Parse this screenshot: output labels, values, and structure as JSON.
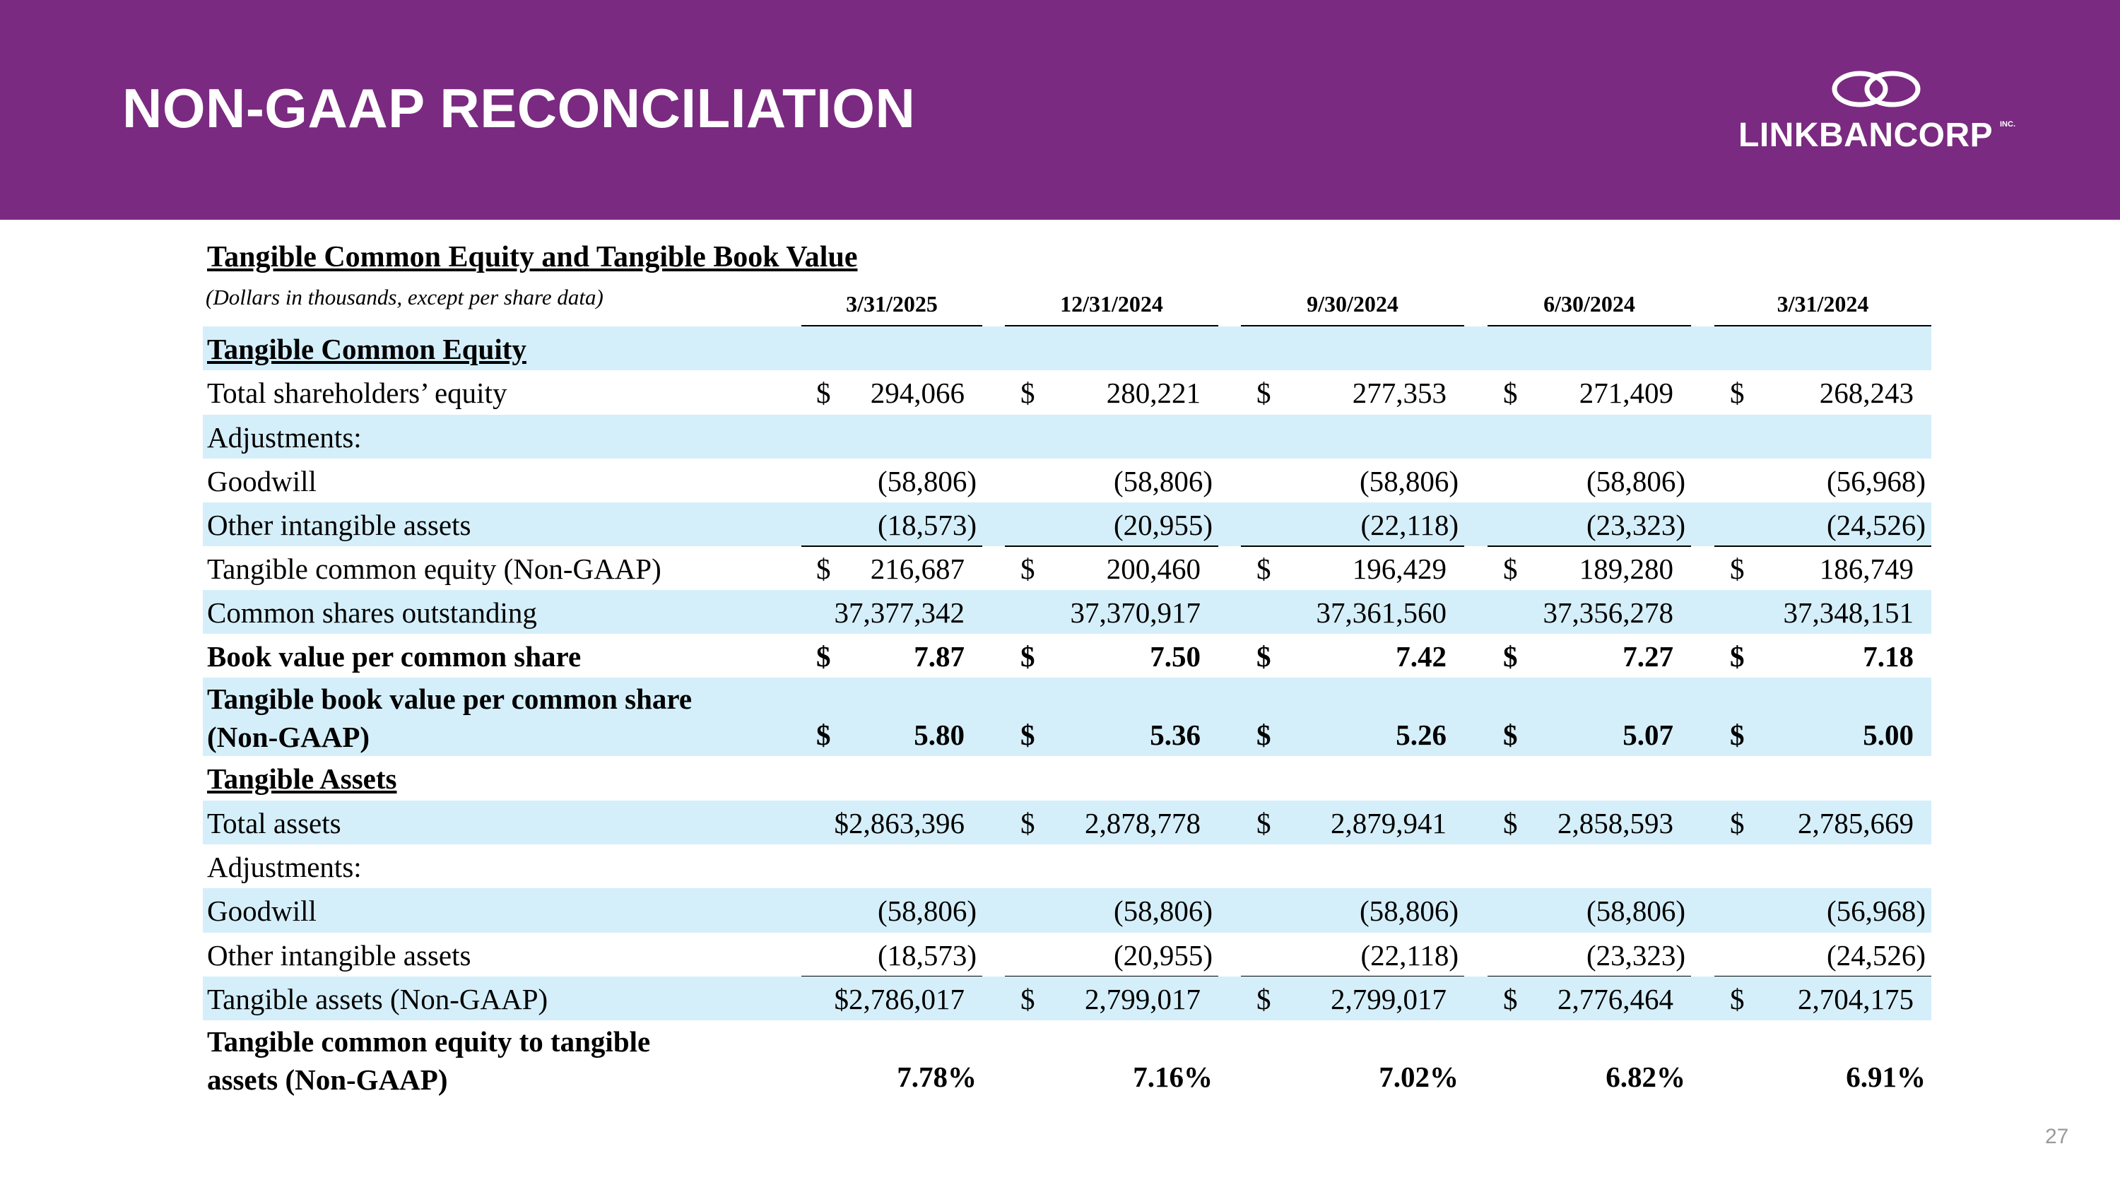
{
  "slide": {
    "title": "NON-GAAP RECONCILIATION",
    "page_number": "27",
    "brand_color": "#7a2a80",
    "row_shade_color": "#d5effa"
  },
  "logo": {
    "name": "LINKBANCORP",
    "suffix": "INC."
  },
  "table": {
    "title": "Tangible Common Equity and Tangible Book Value",
    "subtitle": "(Dollars in thousands, except per share data)",
    "columns": [
      "3/31/2025",
      "12/31/2024",
      "9/30/2024",
      "6/30/2024",
      "3/31/2024"
    ],
    "rows": [
      {
        "label": "Tangible Common Equity",
        "kind": "section"
      },
      {
        "label": "Total shareholders’ equity",
        "dollar": true,
        "values": [
          "294,066",
          "280,221",
          "277,353",
          "271,409",
          "268,243"
        ]
      },
      {
        "label": "Adjustments:"
      },
      {
        "label": "Goodwill",
        "values": [
          "(58,806)",
          "(58,806)",
          "(58,806)",
          "(58,806)",
          "(56,968)"
        ]
      },
      {
        "label": "Other intangible assets",
        "values": [
          "(18,573)",
          "(20,955)",
          "(22,118)",
          "(23,323)",
          "(24,526)"
        ]
      },
      {
        "label": "Tangible common equity (Non-GAAP)",
        "dollar": true,
        "values": [
          "216,687",
          "200,460",
          "196,429",
          "189,280",
          "186,749"
        ]
      },
      {
        "label": "Common shares outstanding",
        "values": [
          "37,377,342",
          "37,370,917",
          "37,361,560",
          "37,356,278",
          "37,348,151"
        ]
      },
      {
        "label": "Book value per common share",
        "bold": true,
        "dollar": true,
        "values": [
          "7.87",
          "7.50",
          "7.42",
          "7.27",
          "7.18"
        ]
      },
      {
        "label_lines": [
          "Tangible book value per common share",
          "(Non-GAAP)"
        ],
        "bold": true,
        "dollar": true,
        "values": [
          "5.80",
          "5.36",
          "5.26",
          "5.07",
          "5.00"
        ]
      },
      {
        "label": "Tangible Assets",
        "kind": "section"
      },
      {
        "label": "Total assets",
        "dollar": true,
        "values": [
          "2,863,396",
          "2,878,778",
          "2,879,941",
          "2,858,593",
          "2,785,669"
        ]
      },
      {
        "label": "Adjustments:"
      },
      {
        "label": "Goodwill",
        "values": [
          "(58,806)",
          "(58,806)",
          "(58,806)",
          "(58,806)",
          "(56,968)"
        ]
      },
      {
        "label": "Other intangible assets",
        "values": [
          "(18,573)",
          "(20,955)",
          "(22,118)",
          "(23,323)",
          "(24,526)"
        ]
      },
      {
        "label": "Tangible assets (Non-GAAP)",
        "dollar": true,
        "values": [
          "2,786,017",
          "2,799,017",
          "2,799,017",
          "2,776,464",
          "2,704,175"
        ]
      },
      {
        "label_lines": [
          "Tangible common equity to tangible",
          "assets (Non-GAAP)"
        ],
        "bold": true,
        "values": [
          "7.78%",
          "7.16%",
          "7.02%",
          "6.82%",
          "6.91%"
        ]
      }
    ]
  }
}
